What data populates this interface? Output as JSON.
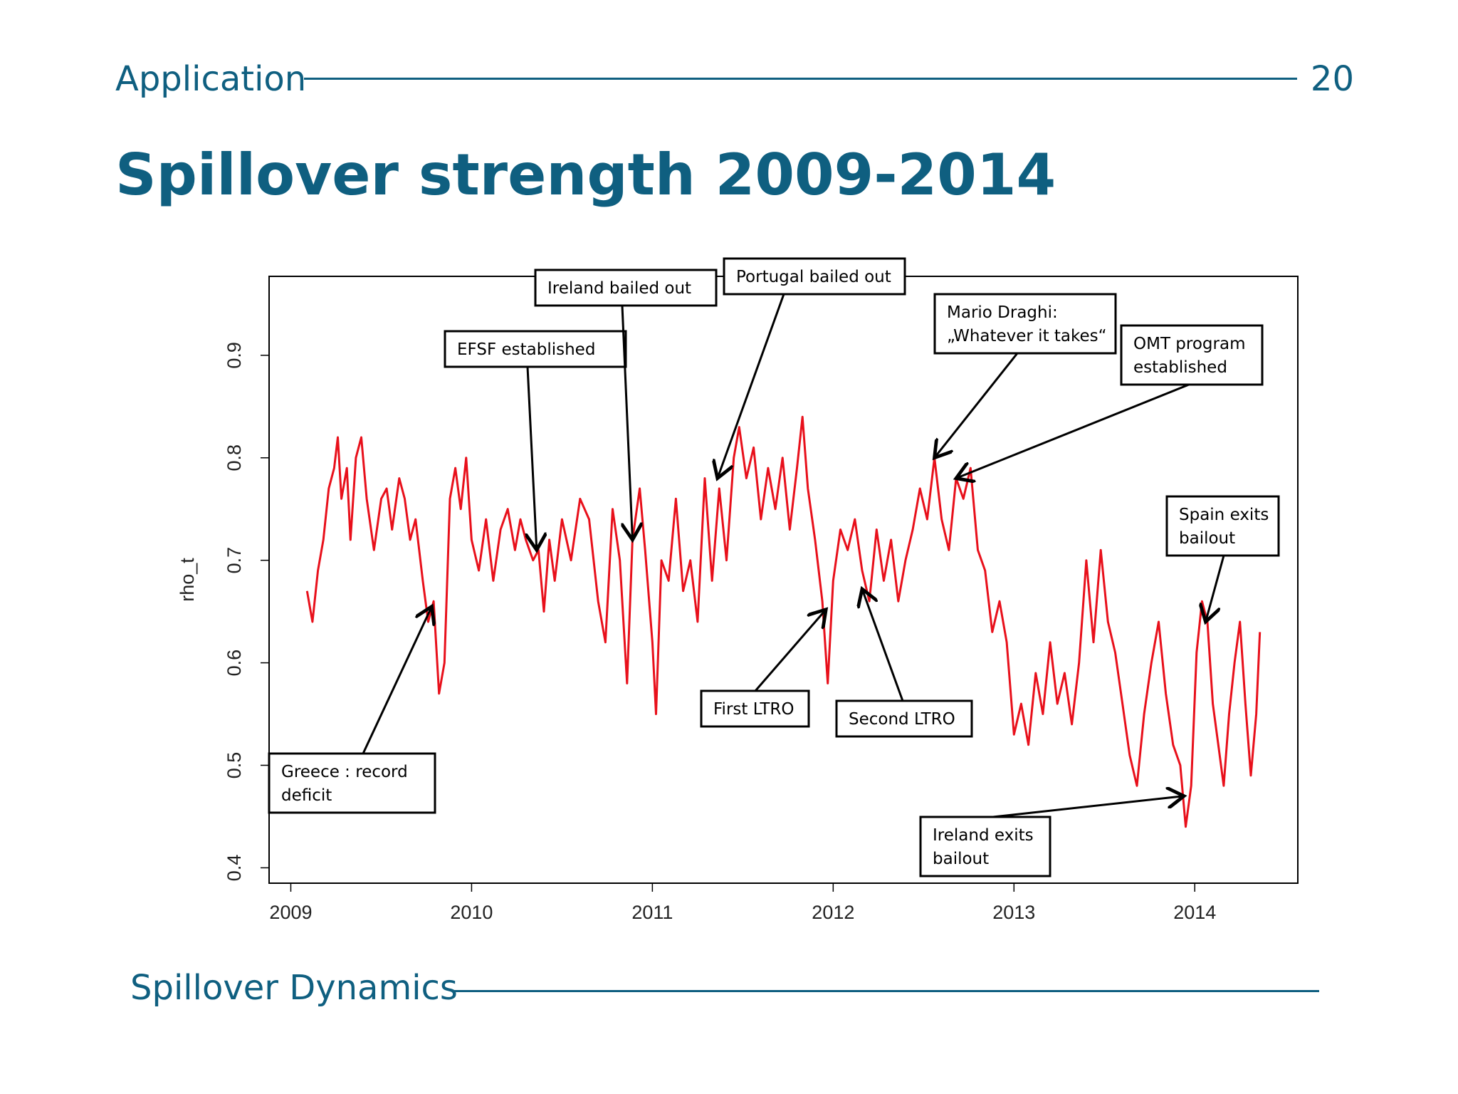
{
  "header": {
    "section": "Application",
    "page_number": "20"
  },
  "title": "Spillover strength 2009-2014",
  "footer": {
    "title": "Spillover Dynamics"
  },
  "colors": {
    "theme": "#0f5f80",
    "series": "#e8101b"
  },
  "chart_data": {
    "type": "line",
    "title": "",
    "xlabel": "",
    "ylabel": "rho_t",
    "xlim": [
      2008.88,
      2014.57
    ],
    "ylim": [
      0.385,
      0.977
    ],
    "x_ticks": [
      "2009",
      "2010",
      "2011",
      "2012",
      "2013",
      "2014"
    ],
    "y_ticks": [
      "0.4",
      "0.5",
      "0.6",
      "0.7",
      "0.8",
      "0.9"
    ],
    "grid": false,
    "series": [
      {
        "name": "",
        "points": [
          [
            2009.09,
            0.67
          ],
          [
            2009.12,
            0.64
          ],
          [
            2009.15,
            0.69
          ],
          [
            2009.18,
            0.72
          ],
          [
            2009.21,
            0.77
          ],
          [
            2009.24,
            0.79
          ],
          [
            2009.26,
            0.82
          ],
          [
            2009.28,
            0.76
          ],
          [
            2009.31,
            0.79
          ],
          [
            2009.33,
            0.72
          ],
          [
            2009.36,
            0.8
          ],
          [
            2009.39,
            0.82
          ],
          [
            2009.42,
            0.76
          ],
          [
            2009.46,
            0.71
          ],
          [
            2009.5,
            0.76
          ],
          [
            2009.53,
            0.77
          ],
          [
            2009.56,
            0.73
          ],
          [
            2009.6,
            0.78
          ],
          [
            2009.63,
            0.76
          ],
          [
            2009.66,
            0.72
          ],
          [
            2009.69,
            0.74
          ],
          [
            2009.73,
            0.68
          ],
          [
            2009.76,
            0.64
          ],
          [
            2009.79,
            0.66
          ],
          [
            2009.82,
            0.57
          ],
          [
            2009.85,
            0.6
          ],
          [
            2009.88,
            0.76
          ],
          [
            2009.91,
            0.79
          ],
          [
            2009.94,
            0.75
          ],
          [
            2009.97,
            0.8
          ],
          [
            2010.0,
            0.72
          ],
          [
            2010.04,
            0.69
          ],
          [
            2010.08,
            0.74
          ],
          [
            2010.12,
            0.68
          ],
          [
            2010.16,
            0.73
          ],
          [
            2010.2,
            0.75
          ],
          [
            2010.24,
            0.71
          ],
          [
            2010.27,
            0.74
          ],
          [
            2010.3,
            0.72
          ],
          [
            2010.34,
            0.7
          ],
          [
            2010.37,
            0.71
          ],
          [
            2010.4,
            0.65
          ],
          [
            2010.43,
            0.72
          ],
          [
            2010.46,
            0.68
          ],
          [
            2010.5,
            0.74
          ],
          [
            2010.55,
            0.7
          ],
          [
            2010.6,
            0.76
          ],
          [
            2010.65,
            0.74
          ],
          [
            2010.7,
            0.66
          ],
          [
            2010.74,
            0.62
          ],
          [
            2010.78,
            0.75
          ],
          [
            2010.82,
            0.7
          ],
          [
            2010.86,
            0.58
          ],
          [
            2010.89,
            0.72
          ],
          [
            2010.93,
            0.77
          ],
          [
            2010.96,
            0.71
          ],
          [
            2011.0,
            0.62
          ],
          [
            2011.02,
            0.55
          ],
          [
            2011.05,
            0.7
          ],
          [
            2011.09,
            0.68
          ],
          [
            2011.13,
            0.76
          ],
          [
            2011.17,
            0.67
          ],
          [
            2011.21,
            0.7
          ],
          [
            2011.25,
            0.64
          ],
          [
            2011.29,
            0.78
          ],
          [
            2011.33,
            0.68
          ],
          [
            2011.37,
            0.77
          ],
          [
            2011.41,
            0.7
          ],
          [
            2011.45,
            0.8
          ],
          [
            2011.48,
            0.83
          ],
          [
            2011.52,
            0.78
          ],
          [
            2011.56,
            0.81
          ],
          [
            2011.6,
            0.74
          ],
          [
            2011.64,
            0.79
          ],
          [
            2011.68,
            0.75
          ],
          [
            2011.72,
            0.8
          ],
          [
            2011.76,
            0.73
          ],
          [
            2011.8,
            0.79
          ],
          [
            2011.83,
            0.84
          ],
          [
            2011.86,
            0.77
          ],
          [
            2011.9,
            0.72
          ],
          [
            2011.94,
            0.66
          ],
          [
            2011.97,
            0.58
          ],
          [
            2012.0,
            0.68
          ],
          [
            2012.04,
            0.73
          ],
          [
            2012.08,
            0.71
          ],
          [
            2012.12,
            0.74
          ],
          [
            2012.16,
            0.69
          ],
          [
            2012.2,
            0.66
          ],
          [
            2012.24,
            0.73
          ],
          [
            2012.28,
            0.68
          ],
          [
            2012.32,
            0.72
          ],
          [
            2012.36,
            0.66
          ],
          [
            2012.4,
            0.7
          ],
          [
            2012.44,
            0.73
          ],
          [
            2012.48,
            0.77
          ],
          [
            2012.52,
            0.74
          ],
          [
            2012.56,
            0.8
          ],
          [
            2012.6,
            0.74
          ],
          [
            2012.64,
            0.71
          ],
          [
            2012.68,
            0.78
          ],
          [
            2012.72,
            0.76
          ],
          [
            2012.76,
            0.79
          ],
          [
            2012.8,
            0.71
          ],
          [
            2012.84,
            0.69
          ],
          [
            2012.88,
            0.63
          ],
          [
            2012.92,
            0.66
          ],
          [
            2012.96,
            0.62
          ],
          [
            2013.0,
            0.53
          ],
          [
            2013.04,
            0.56
          ],
          [
            2013.08,
            0.52
          ],
          [
            2013.12,
            0.59
          ],
          [
            2013.16,
            0.55
          ],
          [
            2013.2,
            0.62
          ],
          [
            2013.24,
            0.56
          ],
          [
            2013.28,
            0.59
          ],
          [
            2013.32,
            0.54
          ],
          [
            2013.36,
            0.6
          ],
          [
            2013.4,
            0.7
          ],
          [
            2013.44,
            0.62
          ],
          [
            2013.48,
            0.71
          ],
          [
            2013.52,
            0.64
          ],
          [
            2013.56,
            0.61
          ],
          [
            2013.6,
            0.56
          ],
          [
            2013.64,
            0.51
          ],
          [
            2013.68,
            0.48
          ],
          [
            2013.72,
            0.55
          ],
          [
            2013.76,
            0.6
          ],
          [
            2013.8,
            0.64
          ],
          [
            2013.84,
            0.57
          ],
          [
            2013.88,
            0.52
          ],
          [
            2013.92,
            0.5
          ],
          [
            2013.95,
            0.44
          ],
          [
            2013.98,
            0.48
          ],
          [
            2014.01,
            0.61
          ],
          [
            2014.04,
            0.66
          ],
          [
            2014.07,
            0.64
          ],
          [
            2014.1,
            0.56
          ],
          [
            2014.13,
            0.52
          ],
          [
            2014.16,
            0.48
          ],
          [
            2014.19,
            0.55
          ],
          [
            2014.22,
            0.6
          ],
          [
            2014.25,
            0.64
          ],
          [
            2014.28,
            0.56
          ],
          [
            2014.31,
            0.49
          ],
          [
            2014.34,
            0.55
          ],
          [
            2014.36,
            0.63
          ]
        ]
      }
    ],
    "annotations": [
      {
        "text": [
          "Greece : record",
          "deficit"
        ],
        "target": [
          2009.78,
          0.655
        ]
      },
      {
        "text": [
          "EFSF established"
        ],
        "target": [
          2010.36,
          0.71
        ]
      },
      {
        "text": [
          "Ireland bailed out"
        ],
        "target": [
          2010.89,
          0.72
        ]
      },
      {
        "text": [
          "Portugal bailed out"
        ],
        "target": [
          2011.36,
          0.78
        ]
      },
      {
        "text": [
          "Mario Draghi:",
          "„Whatever it takes“"
        ],
        "target": [
          2012.56,
          0.8
        ]
      },
      {
        "text": [
          "OMT program",
          "established"
        ],
        "target": [
          2012.68,
          0.78
        ]
      },
      {
        "text": [
          "Spain exits",
          "bailout"
        ],
        "target": [
          2014.06,
          0.64
        ]
      },
      {
        "text": [
          "First LTRO"
        ],
        "target": [
          2011.96,
          0.652
        ]
      },
      {
        "text": [
          "Second LTRO"
        ],
        "target": [
          2012.16,
          0.672
        ]
      },
      {
        "text": [
          "Ireland exits",
          "bailout"
        ],
        "target": [
          2013.94,
          0.47
        ]
      }
    ]
  }
}
